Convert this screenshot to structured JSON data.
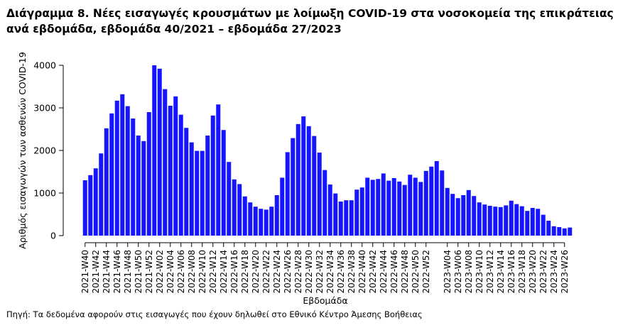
{
  "title_line1": "Διάγραμμα 8. Νέες εισαγωγές κρουσμάτων με λοίμωξη COVID-19 στα νοσοκομεία της επικράτειας",
  "title_line2": "ανά εβδομάδα, εβδομάδα 40/2021 – εβδομάδα 27/2023",
  "source_note": "Πηγή: Τα δεδομένα αφορούν στις εισαγωγές που έχουν δηλωθεί στο Εθνικό Κέντρο Άμεσης Βοήθειας",
  "chart_data": {
    "type": "bar",
    "xlabel": "Εβδομάδα",
    "ylabel": "Αριθμός εισαγωγών των ασθενών COVID-19",
    "ylim": [
      0,
      4000
    ],
    "yticks": [
      0,
      1000,
      2000,
      3000,
      4000
    ],
    "bar_color": "#1515ff",
    "grid": false,
    "categories": [
      "2021-W40",
      "2021-W41",
      "2021-W42",
      "2021-W43",
      "2021-W44",
      "2021-W45",
      "2021-W46",
      "2021-W47",
      "2021-W48",
      "2021-W49",
      "2021-W50",
      "2021-W51",
      "2021-W52",
      "2022-W01",
      "2022-W02",
      "2022-W03",
      "2022-W04",
      "2022-W05",
      "2022-W06",
      "2022-W07",
      "2022-W08",
      "2022-W09",
      "2022-W10",
      "2022-W11",
      "2022-W12",
      "2022-W13",
      "2022-W14",
      "2022-W15",
      "2022-W16",
      "2022-W17",
      "2022-W18",
      "2022-W19",
      "2022-W20",
      "2022-W21",
      "2022-W22",
      "2022-W23",
      "2022-W24",
      "2022-W25",
      "2022-W26",
      "2022-W27",
      "2022-W28",
      "2022-W29",
      "2022-W30",
      "2022-W31",
      "2022-W32",
      "2022-W33",
      "2022-W34",
      "2022-W35",
      "2022-W36",
      "2022-W37",
      "2022-W38",
      "2022-W39",
      "2022-W40",
      "2022-W41",
      "2022-W42",
      "2022-W43",
      "2022-W44",
      "2022-W45",
      "2022-W46",
      "2022-W47",
      "2022-W48",
      "2022-W49",
      "2022-W50",
      "2022-W51",
      "2022-W52",
      "2023-W01",
      "2023-W02",
      "2023-W03",
      "2023-W04",
      "2023-W05",
      "2023-W06",
      "2023-W07",
      "2023-W08",
      "2023-W09",
      "2023-W10",
      "2023-W11",
      "2023-W12",
      "2023-W13",
      "2023-W14",
      "2023-W15",
      "2023-W16",
      "2023-W17",
      "2023-W18",
      "2023-W19",
      "2023-W20",
      "2023-W21",
      "2023-W22",
      "2023-W23",
      "2023-W24",
      "2023-W25",
      "2023-W26",
      "2023-W27"
    ],
    "tick_labels": [
      "2021-W40",
      "2021-W42",
      "2021-W44",
      "2021-W46",
      "2021-W48",
      "2021-W50",
      "2021-W52",
      "2022-W02",
      "2022-W04",
      "2022-W06",
      "2022-W08",
      "2022-W10",
      "2022-W12",
      "2022-W14",
      "2022-W16",
      "2022-W18",
      "2022-W20",
      "2022-W22",
      "2022-W24",
      "2022-W26",
      "2022-W28",
      "2022-W30",
      "2022-W32",
      "2022-W34",
      "2022-W36",
      "2022-W38",
      "2022-W40",
      "2022-W42",
      "2022-W44",
      "2022-W46",
      "2022-W48",
      "2022-W50",
      "2022-W52",
      "2023-W04",
      "2023-W06",
      "2023-W08",
      "2023-W10",
      "2023-W12",
      "2023-W14",
      "2023-W16",
      "2023-W18",
      "2023-W20",
      "2023-W22",
      "2023-W24",
      "2023-W26"
    ],
    "values": [
      1300,
      1420,
      1580,
      1930,
      2520,
      2870,
      3170,
      3320,
      3040,
      2750,
      2350,
      2220,
      2900,
      4000,
      3920,
      3440,
      3050,
      3270,
      2840,
      2530,
      2190,
      1990,
      1990,
      2350,
      2820,
      3080,
      2480,
      1730,
      1320,
      1210,
      920,
      780,
      680,
      630,
      610,
      680,
      950,
      1360,
      1960,
      2290,
      2620,
      2800,
      2570,
      2340,
      1950,
      1540,
      1200,
      990,
      800,
      830,
      830,
      1080,
      1130,
      1360,
      1310,
      1330,
      1460,
      1290,
      1350,
      1270,
      1190,
      1430,
      1360,
      1260,
      1520,
      1620,
      1750,
      1530,
      1120,
      980,
      880,
      950,
      1070,
      930,
      780,
      730,
      700,
      680,
      670,
      710,
      820,
      740,
      690,
      580,
      650,
      630,
      490,
      350,
      220,
      200,
      170,
      190
    ]
  }
}
